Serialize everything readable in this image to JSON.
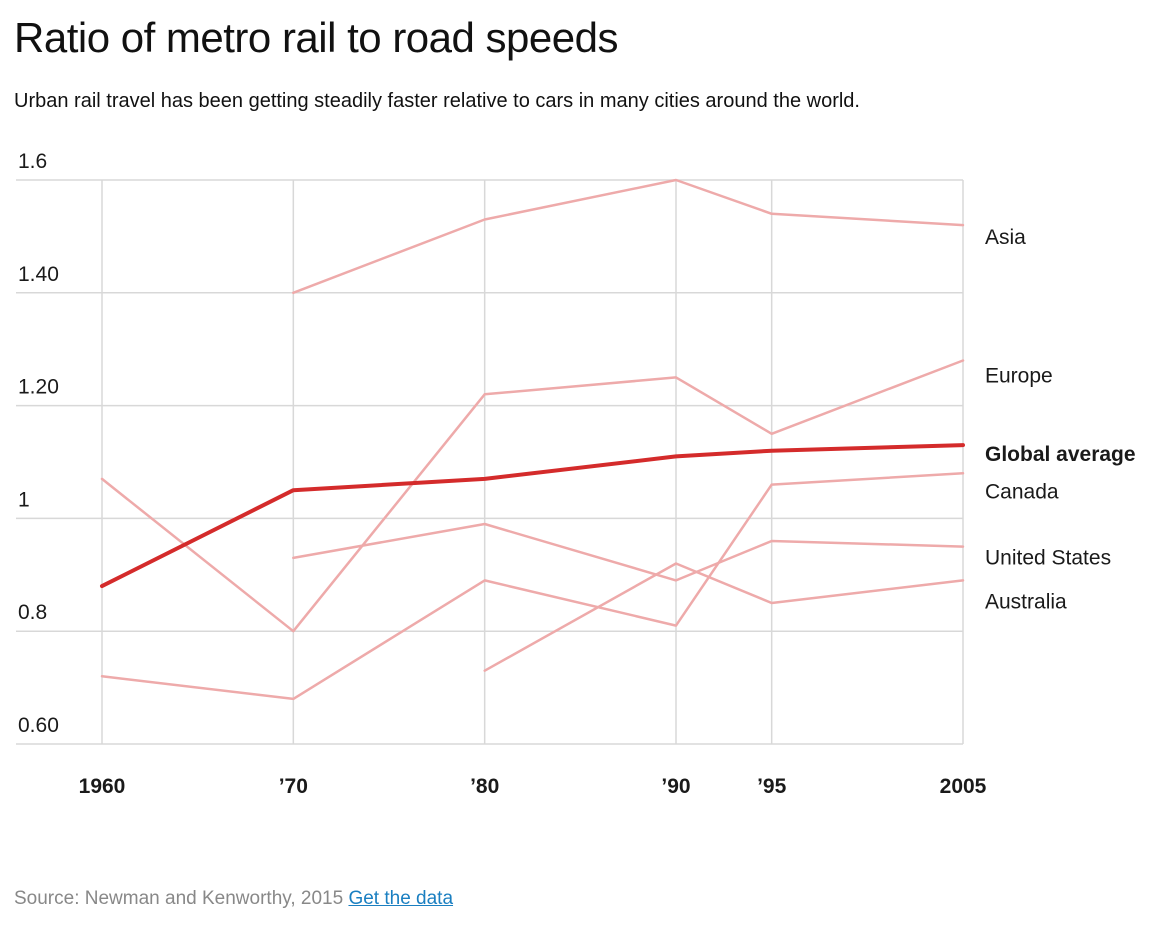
{
  "header": {
    "title": "Ratio of metro rail to road speeds",
    "subtitle": "Urban rail travel has been getting steadily faster relative to cars in many cities around the world."
  },
  "footer": {
    "source_text": "Source: Newman and Kenworthy, 2015",
    "link_label": "Get the data"
  },
  "colors": {
    "highlight": "#d42b2b",
    "series": "#eeaaaa",
    "grid": "#d8d8d8",
    "text": "#1a1a1a",
    "link": "#1a7fc1"
  },
  "chart_data": {
    "type": "line",
    "x": [
      1960,
      1970,
      1980,
      1990,
      1995,
      2005
    ],
    "x_tick_labels": [
      "1960",
      "’70",
      "’80",
      "’90",
      "’95",
      "2005"
    ],
    "y_tick_values": [
      0.6,
      0.8,
      1.0,
      1.2,
      1.4,
      1.6
    ],
    "y_tick_labels": [
      "0.60",
      "0.8",
      "1",
      "1.20",
      "1.40",
      "1.6"
    ],
    "ylim": [
      0.6,
      1.6
    ],
    "grid": true,
    "legend": "direct labels at right end of lines",
    "series": [
      {
        "name": "Asia",
        "values": [
          null,
          1.4,
          1.53,
          1.6,
          1.54,
          1.52
        ],
        "highlight": false
      },
      {
        "name": "Europe",
        "values": [
          1.07,
          0.8,
          1.22,
          1.25,
          1.15,
          1.28
        ],
        "highlight": false
      },
      {
        "name": "Global average",
        "values": [
          0.88,
          1.05,
          1.07,
          1.11,
          1.12,
          1.13
        ],
        "highlight": true
      },
      {
        "name": "Australia",
        "values": [
          null,
          null,
          0.73,
          0.92,
          0.85,
          0.89
        ],
        "highlight": false
      },
      {
        "name": "United States",
        "values": [
          null,
          0.93,
          0.99,
          0.89,
          0.96,
          0.95
        ],
        "highlight": false
      },
      {
        "name": "Canada",
        "values": [
          0.72,
          0.68,
          0.89,
          0.81,
          1.06,
          1.08
        ],
        "highlight": false
      }
    ]
  }
}
